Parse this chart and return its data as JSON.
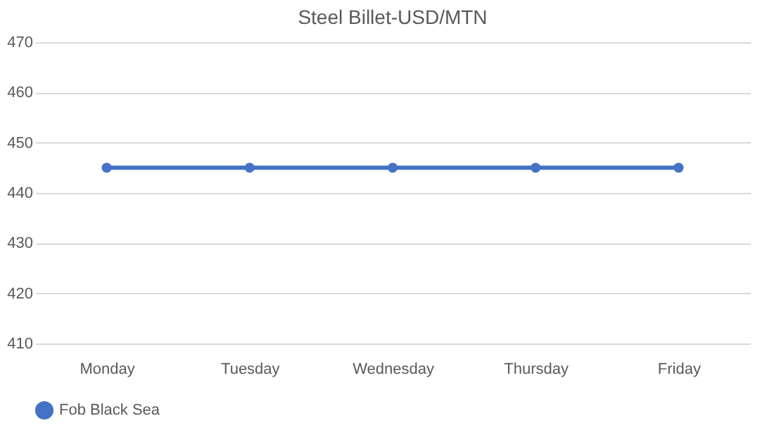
{
  "chart_data": {
    "type": "line",
    "title": "Steel Billet-USD/MTN",
    "categories": [
      "Monday",
      "Tuesday",
      "Wednesday",
      "Thursday",
      "Friday"
    ],
    "series": [
      {
        "name": "Fob Black Sea",
        "color": "#4472c4",
        "values": [
          445,
          445,
          445,
          445,
          445
        ]
      }
    ],
    "ylim": [
      410,
      470
    ],
    "yticks": [
      410,
      420,
      430,
      440,
      450,
      460,
      470
    ],
    "grid": "y",
    "legend": "bottom",
    "marker": "circle",
    "line_style": "solid"
  }
}
